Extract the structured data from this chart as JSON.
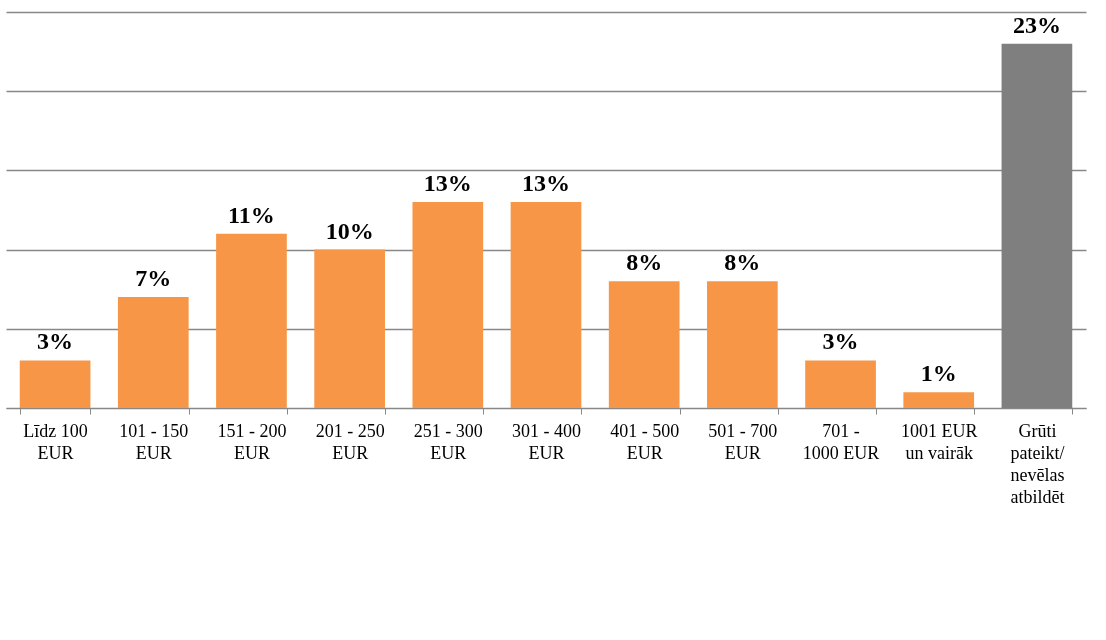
{
  "chart_data": {
    "type": "bar",
    "categories": [
      "Līdz 100 EUR",
      "101 - 150 EUR",
      "151 - 200 EUR",
      "201 - 250 EUR",
      "251 - 300 EUR",
      "301 - 400 EUR",
      "401 - 500 EUR",
      "501 - 700 EUR",
      "701 - 1000 EUR",
      "1001 EUR un vairāk",
      "Grūti pateikt/ nevēlas atbildēt"
    ],
    "values": [
      3,
      7,
      11,
      10,
      13,
      13,
      8,
      8,
      3,
      1,
      23
    ],
    "colors": [
      "#f79646",
      "#f79646",
      "#f79646",
      "#f79646",
      "#f79646",
      "#f79646",
      "#f79646",
      "#f79646",
      "#f79646",
      "#f79646",
      "#7f7f7f"
    ],
    "value_labels": [
      "3%",
      "7%",
      "11%",
      "10%",
      "13%",
      "13%",
      "8%",
      "8%",
      "3%",
      "1%",
      "23%"
    ],
    "ylim": [
      0,
      25
    ],
    "yticks": [
      {
        "value": 0,
        "label": null
      },
      {
        "value": 5,
        "label": null
      },
      {
        "value": 10,
        "label": null
      },
      {
        "value": 15,
        "label": null
      },
      {
        "value": 20,
        "label": null
      },
      {
        "value": 25,
        "label": null
      }
    ],
    "grid": "y",
    "tick_labels": "x"
  }
}
